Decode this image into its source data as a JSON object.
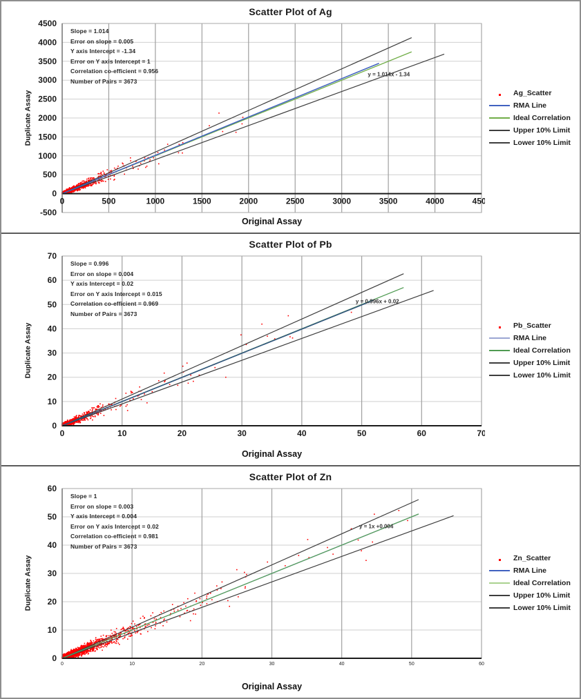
{
  "page": {
    "background": "#ffffff",
    "frame_border_color": "#8e8e8e",
    "separator_color": "#5a5a5a"
  },
  "chart_data": [
    {
      "type": "scatter",
      "title": "Scatter Plot of Ag",
      "xlabel": "Original Assay",
      "ylabel": "Duplicate Assay",
      "xlim": [
        0,
        4500
      ],
      "ylim": [
        -500,
        4500
      ],
      "xticks": [
        0,
        500,
        1000,
        1500,
        2000,
        2500,
        3000,
        3500,
        4000,
        4500
      ],
      "yticks": [
        -500,
        0,
        500,
        1000,
        1500,
        2000,
        2500,
        3000,
        3500,
        4000,
        4500
      ],
      "grid": true,
      "x_tick_font": 12,
      "y_tick_font": 12,
      "stats": [
        "Slope = 1.014",
        "Error on slope = 0.005",
        "Y axis Intercept = -1.34",
        "Error on Y axis Intercept = 1",
        "Correlation co-efficient = 0.956",
        "Number of Pairs = 3673"
      ],
      "equation": {
        "text": "y = 1.014x - 1.34",
        "x": 3280,
        "y": 3100
      },
      "legend": [
        {
          "label": "Ag_Scatter",
          "type": "marker",
          "color": "#ff0000"
        },
        {
          "label": "RMA Line",
          "type": "line",
          "color": "#4061c0"
        },
        {
          "label": "Ideal Correlation",
          "type": "line",
          "color": "#70ad47"
        },
        {
          "label": "Upper 10% Limit",
          "type": "line",
          "color": "#3d3d3d"
        },
        {
          "label": "Lower 10% Limit",
          "type": "line",
          "color": "#3d3d3d"
        }
      ],
      "lines": [
        {
          "name": "upper-10pct-limit",
          "slope": 1.1,
          "intercept": 0,
          "x_end": 3750,
          "color": "#3d3d3d",
          "width": 1.2
        },
        {
          "name": "lower-10pct-limit",
          "slope": 0.9,
          "intercept": 0,
          "x_end": 4100,
          "color": "#3d3d3d",
          "width": 1.2
        },
        {
          "name": "ideal-correlation",
          "slope": 1,
          "intercept": 0,
          "x_end": 3750,
          "color": "#70ad47",
          "width": 1.3
        },
        {
          "name": "rma-line",
          "slope": 1.014,
          "intercept": -1.34,
          "x_end": 3400,
          "color": "#4061c0",
          "width": 1.5
        }
      ],
      "scatter": {
        "series_name": "Ag_Scatter",
        "color": "#ff0000",
        "n": 1150,
        "seed": 11,
        "x_scale": 120,
        "x_scale2": 380,
        "mix2": 0.15,
        "x_max": 2150,
        "outlier_p": 0.006,
        "rel_noise": 0.12,
        "abs_noise": 20,
        "slope": 1.014,
        "intercept": -1.34
      }
    },
    {
      "type": "scatter",
      "title": "Scatter Plot of Pb",
      "xlabel": "Original Assay",
      "ylabel": "Duplicate Assay",
      "xlim": [
        0,
        70
      ],
      "ylim": [
        0,
        70
      ],
      "xticks": [
        0,
        10,
        20,
        30,
        40,
        50,
        60,
        70
      ],
      "yticks": [
        0,
        10,
        20,
        30,
        40,
        50,
        60,
        70
      ],
      "grid": true,
      "x_tick_font": 12,
      "y_tick_font": 12,
      "stats": [
        "Slope = 0.996",
        "Error on slope = 0.004",
        "Y axis Intercept = 0.02",
        "Error on Y axis Intercept = 0.015",
        "Correlation co-efficient = 0.969",
        "Number of Pairs = 3673"
      ],
      "equation": {
        "text": "y = 0.996x + 0.02",
        "x": 49,
        "y": 50.5
      },
      "legend": [
        {
          "label": "Pb_Scatter",
          "type": "marker",
          "color": "#ff0000"
        },
        {
          "label": "RMA Line",
          "type": "line",
          "color": "#9aa5d2"
        },
        {
          "label": "Ideal Correlation",
          "type": "line",
          "color": "#4e9a51"
        },
        {
          "label": "Upper 10% Limit",
          "type": "line",
          "color": "#3d3d3d"
        },
        {
          "label": "Lower 10% Limit",
          "type": "line",
          "color": "#3d3d3d"
        }
      ],
      "lines": [
        {
          "name": "upper-10pct-limit",
          "slope": 1.1,
          "intercept": 0,
          "x_end": 57,
          "color": "#3d3d3d",
          "width": 1.2
        },
        {
          "name": "lower-10pct-limit",
          "slope": 0.9,
          "intercept": 0,
          "x_end": 62,
          "color": "#3d3d3d",
          "width": 1.2
        },
        {
          "name": "ideal-correlation",
          "slope": 1,
          "intercept": 0,
          "x_end": 57,
          "color": "#4e9a51",
          "width": 1.3
        },
        {
          "name": "rma-line",
          "slope": 0.996,
          "intercept": 0.02,
          "x_end": 52,
          "color": "#33567f",
          "width": 1.6
        }
      ],
      "scatter": {
        "series_name": "Pb_Scatter",
        "color": "#ff0000",
        "n": 900,
        "seed": 23,
        "x_scale": 1.8,
        "x_scale2": 6.0,
        "mix2": 0.15,
        "x_max": 53,
        "outlier_p": 0.012,
        "rel_noise": 0.13,
        "abs_noise": 0.4,
        "slope": 0.996,
        "intercept": 0.02
      }
    },
    {
      "type": "scatter",
      "title": "Scatter Plot of Zn",
      "xlabel": "Original Assay",
      "ylabel": "Duplicate Assay",
      "xlim": [
        0,
        60
      ],
      "ylim": [
        0,
        60
      ],
      "xticks": [
        0,
        10,
        20,
        30,
        40,
        50,
        60
      ],
      "yticks": [
        0,
        10,
        20,
        30,
        40,
        50,
        60
      ],
      "grid": true,
      "x_tick_font": 7,
      "y_tick_font": 12,
      "stats": [
        "Slope = 1",
        "Error on slope = 0.003",
        "Y axis Intercept = 0.004",
        "Error on Y axis Intercept = 0.02",
        "Correlation co-efficient = 0.981",
        "Number of Pairs = 3673"
      ],
      "equation": {
        "text": "y = 1x +0.004",
        "x": 42.5,
        "y": 46
      },
      "legend": [
        {
          "label": "Zn_Scatter",
          "type": "marker",
          "color": "#ff0000"
        },
        {
          "label": "RMA Line",
          "type": "line",
          "color": "#4061c0"
        },
        {
          "label": "Ideal Correlation",
          "type": "line",
          "color": "#a9d18e"
        },
        {
          "label": "Upper 10% Limit",
          "type": "line",
          "color": "#3d3d3d"
        },
        {
          "label": "Lower 10% Limit",
          "type": "line",
          "color": "#3d3d3d"
        }
      ],
      "lines": [
        {
          "name": "upper-10pct-limit",
          "slope": 1.1,
          "intercept": 0,
          "x_end": 51,
          "color": "#3d3d3d",
          "width": 1.2
        },
        {
          "name": "lower-10pct-limit",
          "slope": 0.9,
          "intercept": 0,
          "x_end": 56,
          "color": "#3d3d3d",
          "width": 1.2
        },
        {
          "name": "rma-line",
          "slope": 1.0,
          "intercept": 0.004,
          "x_end": 51,
          "color": "#4061c0",
          "width": 1.2
        },
        {
          "name": "ideal-correlation",
          "slope": 1,
          "intercept": 0,
          "x_end": 51,
          "color": "#58a05a",
          "width": 1.3
        }
      ],
      "scatter": {
        "series_name": "Zn_Scatter",
        "color": "#ff0000",
        "n": 1900,
        "seed": 37,
        "x_scale": 2.2,
        "x_scale2": 7.0,
        "mix2": 0.2,
        "x_max": 50,
        "outlier_p": 0.012,
        "rel_noise": 0.1,
        "abs_noise": 0.5,
        "slope": 1.0,
        "intercept": 0.004
      }
    }
  ],
  "style": {
    "grid_v_color": "#9f9f9f",
    "grid_h_color": "#cfcfcf",
    "plot_border_color": "#a9a9a9",
    "axis_color": "#1a1a1a",
    "tick_label_color": "#1a1a1a",
    "equation_color": "#333333"
  }
}
